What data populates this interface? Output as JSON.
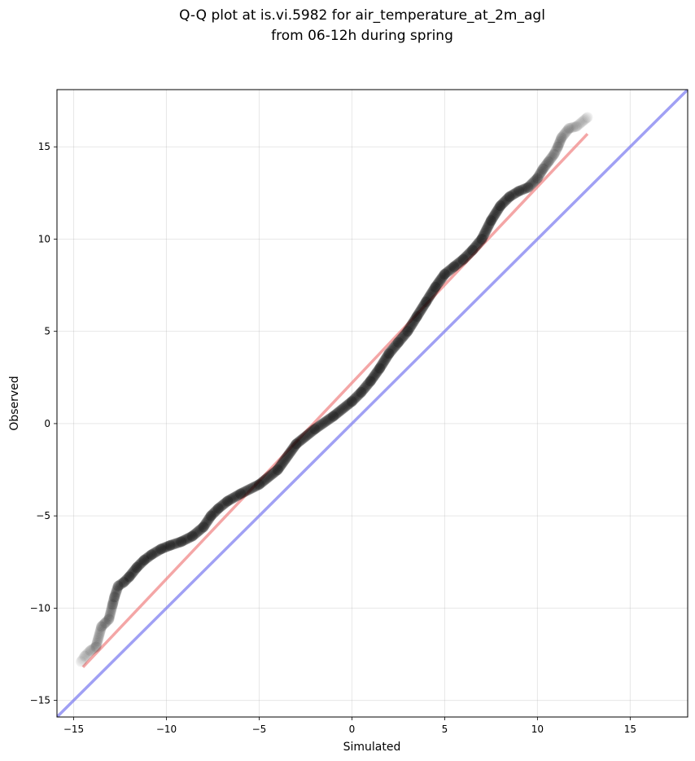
{
  "chart_data": {
    "type": "scatter",
    "title_line1": "Q-Q plot at is.vi.5982 for air_temperature_at_2m_agl",
    "title_line2": "from 06-12h during spring",
    "xlabel": "Simulated",
    "ylabel": "Observed",
    "xlim": [
      -15.9,
      18.1
    ],
    "ylim": [
      -15.9,
      18.1
    ],
    "xticks": [
      -15,
      -10,
      -5,
      0,
      5,
      10,
      15
    ],
    "yticks": [
      -15,
      -10,
      -5,
      0,
      5,
      10,
      15
    ],
    "xtick_labels": [
      "−15",
      "−10",
      "−5",
      "0",
      "5",
      "10",
      "15"
    ],
    "ytick_labels": [
      "−15",
      "−10",
      "−5",
      "0",
      "5",
      "10",
      "15"
    ],
    "grid": true,
    "colors": {
      "points": "#000000",
      "fit_line": "#f08080",
      "identity_line": "#8080f0"
    },
    "points": {
      "x": [
        -14.6,
        -14.4,
        -14.1,
        -13.8,
        -13.5,
        -13.3,
        -13.1,
        -12.9,
        -12.8,
        -12.6,
        -12.3,
        -12.0,
        -11.6,
        -11.2,
        -10.8,
        -10.3,
        -9.8,
        -9.2,
        -8.6,
        -8.0,
        -7.6,
        -7.2,
        -6.7,
        -6.0,
        -5.0,
        -4.0,
        -3.0,
        -2.0,
        -1.0,
        0.0,
        0.5,
        1.0,
        1.5,
        2.0,
        2.5,
        3.0,
        3.5,
        4.0,
        4.5,
        5.0,
        5.5,
        6.0,
        6.5,
        7.0,
        7.5,
        8.0,
        8.5,
        9.0,
        9.5,
        10.0,
        10.3,
        10.6,
        10.9,
        11.1,
        11.3,
        11.7,
        12.1,
        12.7
      ],
      "y": [
        -12.9,
        -12.6,
        -12.3,
        -12.1,
        -11.0,
        -10.8,
        -10.6,
        -9.8,
        -9.4,
        -8.8,
        -8.6,
        -8.3,
        -7.8,
        -7.4,
        -7.1,
        -6.8,
        -6.6,
        -6.4,
        -6.1,
        -5.6,
        -5.0,
        -4.6,
        -4.2,
        -3.8,
        -3.3,
        -2.5,
        -1.1,
        -0.3,
        0.4,
        1.2,
        1.7,
        2.3,
        3.0,
        3.8,
        4.4,
        5.0,
        5.8,
        6.6,
        7.4,
        8.1,
        8.5,
        8.9,
        9.4,
        10.0,
        11.0,
        11.8,
        12.3,
        12.6,
        12.8,
        13.3,
        13.8,
        14.2,
        14.6,
        15.0,
        15.5,
        16.0,
        16.1,
        16.6
      ]
    },
    "fit_line": {
      "x": [
        -14.5,
        12.7
      ],
      "y": [
        -13.2,
        15.7
      ]
    },
    "identity_line": {
      "x": [
        -15.9,
        18.1
      ],
      "y": [
        -15.9,
        18.1
      ]
    }
  }
}
